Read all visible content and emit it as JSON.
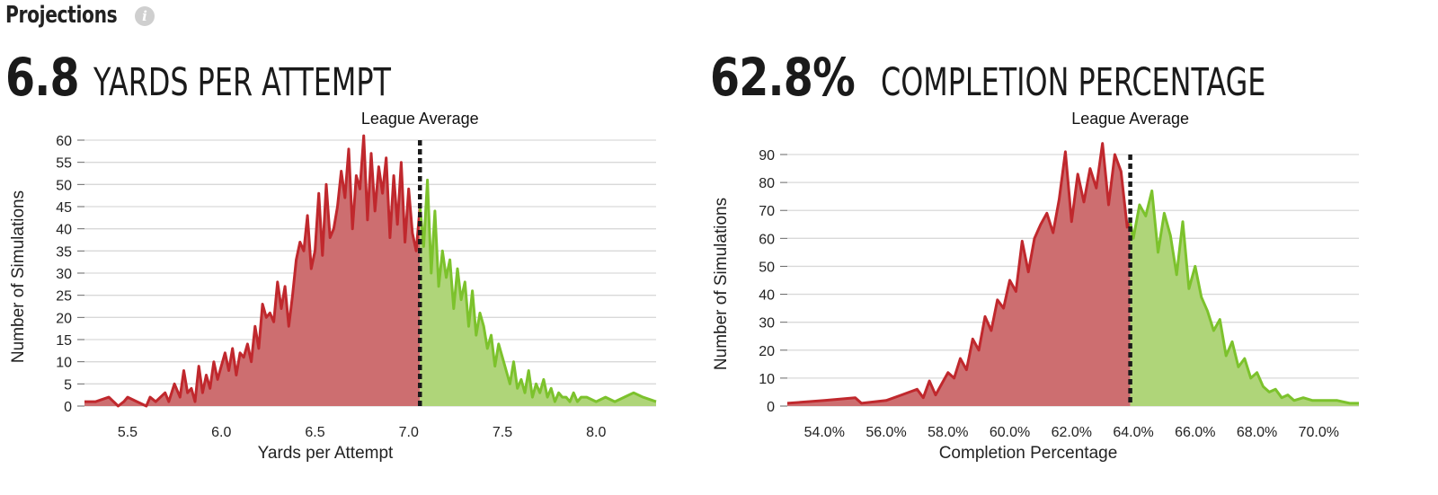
{
  "header": {
    "title": "Projections",
    "info_icon": "info-icon"
  },
  "colors": {
    "below": "#c0282d",
    "below_fill": "#cd6e70",
    "above": "#7cc22c",
    "above_fill": "#afd579",
    "grid": "#d9d9d9",
    "avg_line": "#1a1a1a"
  },
  "panels": [
    {
      "value": "6.8",
      "label": "YARDS PER ATTEMPT",
      "avg_label": "League Average",
      "chart_data": {
        "type": "area",
        "title": "",
        "xlabel": "Yards per Attempt",
        "ylabel": "Number of Simulations",
        "xlim": [
          5.27,
          8.32
        ],
        "ylim": [
          0,
          60
        ],
        "x_ticks": [
          "5.5",
          "6.0",
          "6.5",
          "7.0",
          "7.5",
          "8.0"
        ],
        "x_tick_values": [
          5.5,
          6.0,
          6.5,
          7.0,
          7.5,
          8.0
        ],
        "y_ticks": [
          "0",
          "5",
          "10",
          "15",
          "20",
          "25",
          "30",
          "35",
          "40",
          "45",
          "50",
          "55",
          "60"
        ],
        "y_tick_values": [
          0,
          5,
          10,
          15,
          20,
          25,
          30,
          35,
          40,
          45,
          50,
          55,
          60
        ],
        "league_average": 7.06,
        "grid": true,
        "series": [
          {
            "x": [
              5.27,
              5.33,
              5.4,
              5.45,
              5.48,
              5.5,
              5.55,
              5.6,
              5.62,
              5.65,
              5.7,
              5.72,
              5.75,
              5.78,
              5.8,
              5.82,
              5.84,
              5.86,
              5.88,
              5.9,
              5.92,
              5.94,
              5.96,
              5.98,
              6.0,
              6.02,
              6.04,
              6.06,
              6.08,
              6.1,
              6.12,
              6.14,
              6.16,
              6.18,
              6.2,
              6.22,
              6.24,
              6.26,
              6.28,
              6.3,
              6.32,
              6.34,
              6.36,
              6.38,
              6.4,
              6.42,
              6.44,
              6.46,
              6.48,
              6.5,
              6.52,
              6.54,
              6.56,
              6.58,
              6.6,
              6.62,
              6.64,
              6.66,
              6.68,
              6.7,
              6.72,
              6.74,
              6.76,
              6.78,
              6.8,
              6.82,
              6.84,
              6.86,
              6.88,
              6.9,
              6.92,
              6.94,
              6.96,
              6.98,
              7.0,
              7.02,
              7.04,
              7.06,
              7.08,
              7.1,
              7.12,
              7.14,
              7.16,
              7.18,
              7.2,
              7.22,
              7.24,
              7.26,
              7.28,
              7.3,
              7.32,
              7.34,
              7.36,
              7.38,
              7.4,
              7.42,
              7.44,
              7.46,
              7.48,
              7.5,
              7.52,
              7.54,
              7.56,
              7.58,
              7.6,
              7.62,
              7.64,
              7.66,
              7.68,
              7.7,
              7.72,
              7.74,
              7.76,
              7.78,
              7.8,
              7.82,
              7.84,
              7.86,
              7.88,
              7.9,
              7.92,
              7.95,
              8.0,
              8.05,
              8.1,
              8.15,
              8.2,
              8.25,
              8.32
            ],
            "y": [
              1,
              1,
              2,
              0,
              1,
              2,
              1,
              0,
              2,
              1,
              3,
              1,
              5,
              2,
              8,
              3,
              4,
              1,
              9,
              3,
              7,
              4,
              10,
              6,
              9,
              12,
              8,
              13,
              7,
              12,
              11,
              14,
              10,
              18,
              13,
              23,
              20,
              21,
              19,
              28,
              22,
              27,
              18,
              25,
              33,
              37,
              35,
              43,
              31,
              35,
              48,
              34,
              50,
              38,
              40,
              45,
              53,
              47,
              58,
              40,
              52,
              49,
              61,
              42,
              57,
              44,
              54,
              48,
              56,
              38,
              52,
              41,
              55,
              37,
              49,
              39,
              35,
              45,
              36,
              51,
              30,
              44,
              27,
              35,
              29,
              33,
              22,
              31,
              24,
              28,
              18,
              26,
              16,
              21,
              18,
              13,
              16,
              9,
              14,
              11,
              8,
              5,
              10,
              4,
              6,
              3,
              8,
              2,
              5,
              3,
              6,
              2,
              4,
              1,
              3,
              2,
              2,
              1,
              3,
              1,
              2,
              2,
              1,
              2,
              1,
              2,
              3,
              2,
              1
            ]
          }
        ]
      }
    },
    {
      "value": "62.8%",
      "label": "COMPLETION PERCENTAGE",
      "avg_label": "League Average",
      "chart_data": {
        "type": "area",
        "title": "",
        "xlabel": "Completion Percentage",
        "ylabel": "Number of Simulations",
        "xlim": [
          52.8,
          71.3
        ],
        "ylim": [
          0,
          90
        ],
        "x_ticks": [
          "54.0%",
          "56.0%",
          "58.0%",
          "60.0%",
          "62.0%",
          "64.0%",
          "66.0%",
          "68.0%",
          "70.0%"
        ],
        "x_tick_values": [
          54,
          56,
          58,
          60,
          62,
          64,
          66,
          68,
          70
        ],
        "y_ticks": [
          "0",
          "10",
          "20",
          "30",
          "40",
          "50",
          "60",
          "70",
          "80",
          "90"
        ],
        "y_tick_values": [
          0,
          10,
          20,
          30,
          40,
          50,
          60,
          70,
          80,
          90
        ],
        "league_average": 63.9,
        "grid": true,
        "series": [
          {
            "x": [
              52.8,
              54,
              55,
              55.2,
              56,
              56.5,
              57,
              57.2,
              57.4,
              57.6,
              57.8,
              58,
              58.2,
              58.4,
              58.6,
              58.8,
              59,
              59.2,
              59.4,
              59.6,
              59.8,
              60,
              60.2,
              60.4,
              60.6,
              60.8,
              61,
              61.2,
              61.4,
              61.6,
              61.8,
              62,
              62.2,
              62.4,
              62.6,
              62.8,
              63,
              63.2,
              63.4,
              63.6,
              63.8,
              63.9,
              64,
              64.2,
              64.4,
              64.6,
              64.8,
              65,
              65.2,
              65.4,
              65.6,
              65.8,
              66,
              66.2,
              66.4,
              66.6,
              66.8,
              67,
              67.2,
              67.4,
              67.6,
              67.8,
              68,
              68.2,
              68.4,
              68.6,
              68.8,
              69,
              69.2,
              69.5,
              69.8,
              70.2,
              70.6,
              71,
              71.3
            ],
            "y": [
              1,
              2,
              3,
              1,
              2,
              4,
              6,
              3,
              9,
              4,
              8,
              12,
              10,
              17,
              13,
              24,
              20,
              32,
              27,
              38,
              35,
              45,
              41,
              59,
              48,
              60,
              65,
              69,
              62,
              74,
              91,
              66,
              83,
              73,
              85,
              78,
              94,
              72,
              90,
              84,
              64,
              66,
              60,
              72,
              68,
              77,
              55,
              69,
              61,
              47,
              66,
              42,
              50,
              39,
              34,
              27,
              31,
              18,
              23,
              14,
              17,
              10,
              12,
              7,
              5,
              6,
              3,
              4,
              2,
              3,
              2,
              2,
              2,
              1,
              1
            ]
          }
        ]
      }
    }
  ]
}
